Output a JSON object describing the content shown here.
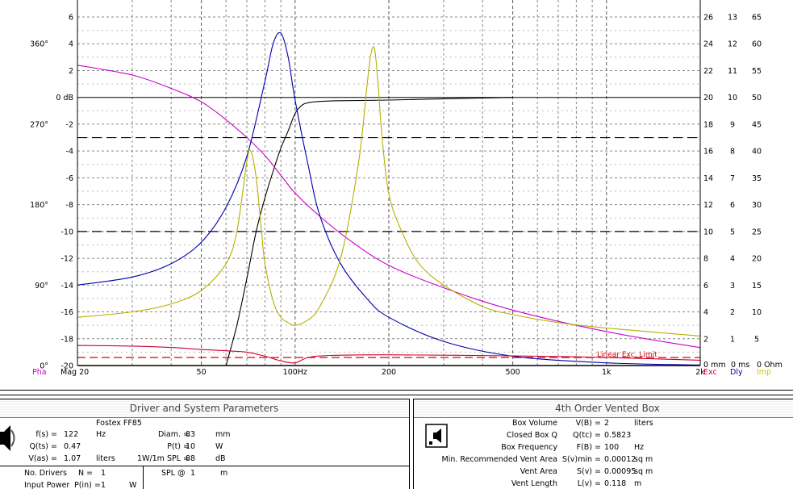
{
  "chart": {
    "mag_axis_labels": [
      "6",
      "4",
      "2",
      "0 dB",
      "-2",
      "-4",
      "-6",
      "-8",
      "-10",
      "-12",
      "-14",
      "-16",
      "-18",
      "-20"
    ],
    "mag_axis_values": [
      6,
      4,
      2,
      0,
      -2,
      -4,
      -6,
      -8,
      -10,
      -12,
      -14,
      -16,
      -18,
      -20
    ],
    "phase_axis_labels": [
      "360°",
      "270°",
      "180°",
      "90°",
      "0°"
    ],
    "phase_axis_values": [
      360,
      270,
      180,
      90,
      0
    ],
    "exc_axis": [
      26,
      24,
      22,
      20,
      18,
      16,
      14,
      12,
      10,
      8,
      6,
      4,
      2
    ],
    "dly_axis": [
      13,
      12,
      11,
      10,
      9,
      8,
      7,
      6,
      5,
      4,
      3,
      2,
      1
    ],
    "imp_axis": [
      65,
      60,
      55,
      50,
      45,
      40,
      35,
      30,
      25,
      20,
      15,
      10,
      5
    ],
    "zero_labels": {
      "exc": "0 mm",
      "dly": "0 ms",
      "imp": "0 Ohm"
    },
    "freq_labels": [
      {
        "f": 20,
        "t": "Mag 20"
      },
      {
        "f": 50,
        "t": "50"
      },
      {
        "f": 100,
        "t": "100Hz"
      },
      {
        "f": 200,
        "t": "200"
      },
      {
        "f": 500,
        "t": "500"
      },
      {
        "f": 1000,
        "t": "1k"
      },
      {
        "f": 2000,
        "t": "2k"
      }
    ],
    "corner_labels": {
      "pha": "Pha",
      "exc": "Exc",
      "dly": "Dly",
      "imp": "Imp"
    },
    "linear_exc_limit_label": "Linear Exc. Limit",
    "colors": {
      "magnitude": "#000000",
      "phase": "#cc00cc",
      "delay": "#0000aa",
      "impedance": "#b5b000",
      "excursion": "#cc0033",
      "limit": "#dd0000",
      "pha_label": "#cc00cc",
      "exc_label": "#cc0033",
      "dly_label": "#0000aa",
      "imp_label": "#cccc00"
    }
  },
  "chart_data": {
    "type": "line",
    "x_scale": "log",
    "xlim": [
      20,
      2000
    ],
    "ylim": [
      -20,
      7
    ],
    "grid": true,
    "series": [
      {
        "name": "Mag",
        "axis": "dB",
        "x": [
          60,
          65,
          70,
          75,
          80,
          85,
          90,
          95,
          100,
          105,
          110,
          120,
          140,
          200,
          300,
          400,
          500
        ],
        "values": [
          -20,
          -17,
          -13.5,
          -10,
          -7.5,
          -5.5,
          -3.8,
          -2.5,
          -1.2,
          -0.6,
          -0.4,
          -0.3,
          -0.25,
          -0.2,
          -0.1,
          -0.05,
          0
        ]
      },
      {
        "name": "Pha",
        "axis": "deg",
        "x": [
          20,
          30,
          40,
          50,
          60,
          70,
          80,
          90,
          100,
          120,
          150,
          200,
          300,
          500,
          1000,
          2000
        ],
        "values": [
          336,
          325,
          310,
          295,
          275,
          255,
          235,
          213,
          193,
          167,
          140,
          112,
          87,
          62,
          38,
          20
        ]
      },
      {
        "name": "Dly",
        "axis": "ms",
        "x": [
          20,
          30,
          40,
          50,
          60,
          70,
          80,
          85,
          90,
          95,
          100,
          110,
          120,
          140,
          170,
          200,
          300,
          500,
          1000,
          2000
        ],
        "values": [
          3,
          3.3,
          3.8,
          4.6,
          5.9,
          7.8,
          10.6,
          12,
          12.4,
          11.5,
          9.9,
          7.5,
          5.6,
          3.8,
          2.5,
          1.8,
          0.9,
          0.35,
          0.1,
          0.02
        ]
      },
      {
        "name": "Imp",
        "axis": "Ohm",
        "x": [
          20,
          30,
          40,
          50,
          60,
          65,
          70,
          72,
          75,
          78,
          80,
          85,
          90,
          95,
          100,
          110,
          120,
          140,
          160,
          170,
          175,
          180,
          185,
          190,
          200,
          220,
          250,
          300,
          400,
          500,
          700,
          1000,
          2000
        ],
        "values": [
          9,
          10,
          11.5,
          14,
          19,
          25,
          38,
          40,
          35,
          25,
          19,
          12,
          9,
          8,
          7.5,
          8.5,
          11,
          20,
          38,
          52,
          58,
          59,
          52,
          43,
          32,
          25,
          19,
          15,
          11,
          9.5,
          8,
          7,
          5.5
        ]
      },
      {
        "name": "Exc",
        "axis": "mm",
        "x": [
          20,
          30,
          40,
          50,
          60,
          70,
          80,
          90,
          100,
          110,
          130,
          200,
          500,
          1000,
          2000
        ],
        "values": [
          1.5,
          1.45,
          1.35,
          1.2,
          1.1,
          1,
          0.7,
          0.35,
          0.2,
          0.6,
          0.75,
          0.8,
          0.72,
          0.6,
          0.4
        ]
      }
    ],
    "reference_lines": [
      {
        "label": "Linear Exc. Limit",
        "axis": "mm",
        "value": 0.6
      }
    ]
  },
  "driver_panel": {
    "title": "Driver and System Parameters",
    "driver_name": "Fostex FF85",
    "fs_label": "f(s) =",
    "fs_value": "122",
    "fs_unit": "Hz",
    "qts_label": "Q(ts) =",
    "qts_value": "0.47",
    "vas_label": "V(as) =",
    "vas_value": "1.07",
    "vas_unit": "liters",
    "diam_label": "Diam. =",
    "diam_value": "83",
    "diam_unit": "mm",
    "pt_label": "P(t) =",
    "pt_value": "10",
    "pt_unit": "W",
    "spl_label": "1W/1m SPL =",
    "spl_value": "88",
    "spl_unit": "dB",
    "nd_label": "No. Drivers",
    "nd_eq": "N =",
    "nd_value": "1",
    "pin_label": "Input Power",
    "pin_eq": "P(in) =",
    "pin_value": "1",
    "pin_unit": "W",
    "splat_label": "SPL @",
    "splat_value": "1",
    "splat_unit": "m"
  },
  "box_panel": {
    "title": "4th Order Vented Box",
    "rows": [
      {
        "label": "Box Volume",
        "eq": "V(B) =",
        "value": "2",
        "unit": "liters"
      },
      {
        "label": "Closed Box Q",
        "eq": "Q(tc) =",
        "value": "0.5823",
        "unit": ""
      },
      {
        "label": "Box Frequency",
        "eq": "F(B) =",
        "value": "100",
        "unit": "Hz"
      },
      {
        "label": "Min. Recommended Vent Area",
        "eq": "S(v)min =",
        "value": "0.00012",
        "unit": "sq m"
      },
      {
        "label": "Vent Area",
        "eq": "S(v) =",
        "value": "0.00095",
        "unit": "sq m"
      },
      {
        "label": "Vent Length",
        "eq": "L(v) =",
        "value": "0.118",
        "unit": "m"
      }
    ]
  }
}
